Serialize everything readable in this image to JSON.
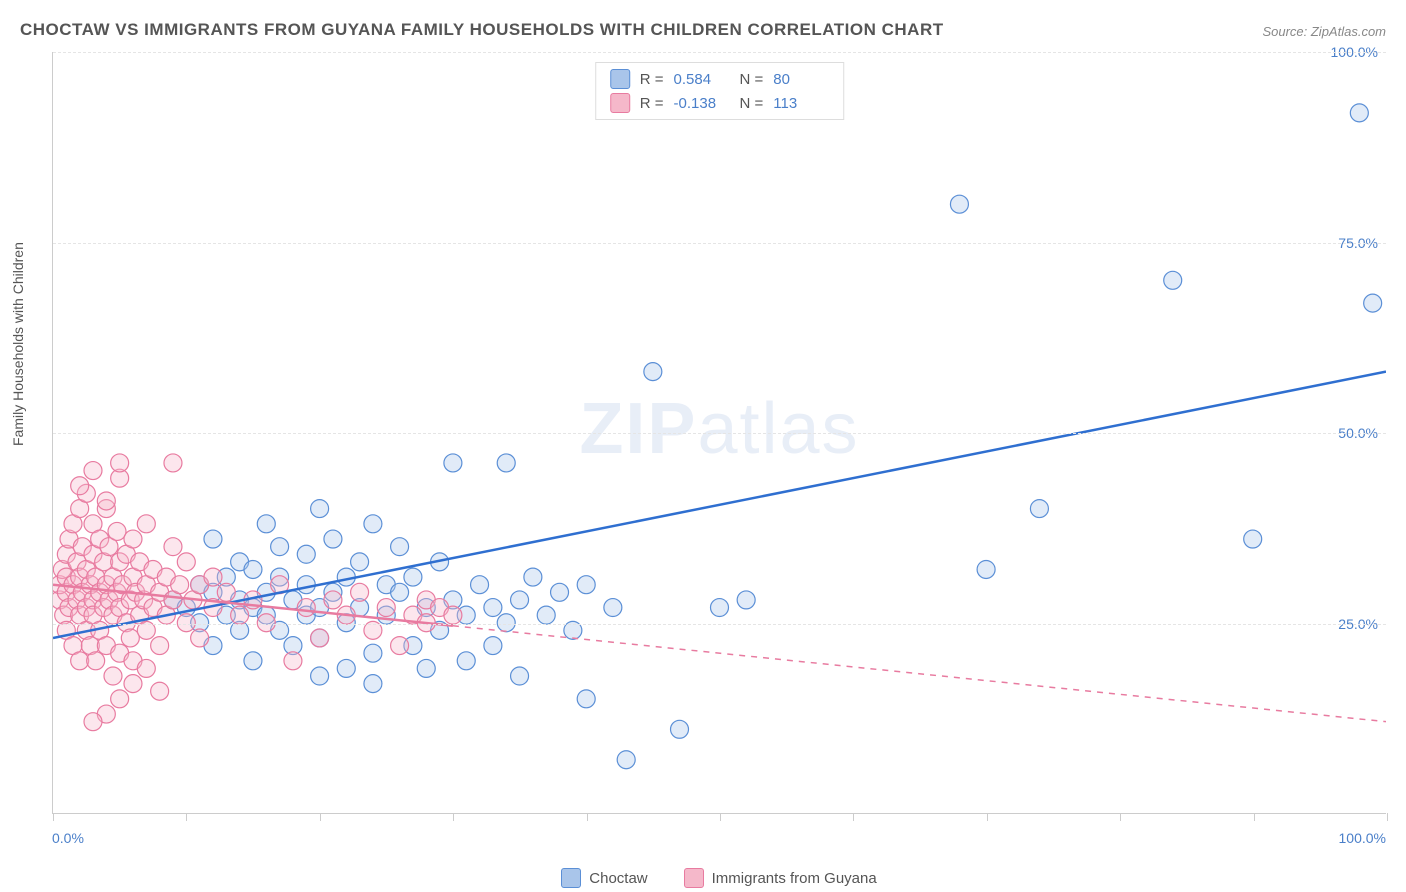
{
  "title": "CHOCTAW VS IMMIGRANTS FROM GUYANA FAMILY HOUSEHOLDS WITH CHILDREN CORRELATION CHART",
  "source": "Source: ZipAtlas.com",
  "y_axis_label": "Family Households with Children",
  "watermark": {
    "bold": "ZIP",
    "light": "atlas"
  },
  "chart": {
    "type": "scatter",
    "xlim": [
      0,
      100
    ],
    "ylim": [
      0,
      100
    ],
    "x_ticks": [
      0,
      10,
      20,
      30,
      40,
      50,
      60,
      70,
      80,
      90,
      100
    ],
    "y_gridlines": [
      25,
      50,
      75,
      100
    ],
    "x_tick_labels": {
      "0": "0.0%",
      "100": "100.0%"
    },
    "y_tick_labels": {
      "25": "25.0%",
      "50": "50.0%",
      "75": "75.0%",
      "100": "100.0%"
    },
    "background_color": "#ffffff",
    "grid_color": "#e5e5e5",
    "axis_color": "#cccccc",
    "tick_label_color": "#4a7fc9",
    "title_color": "#555555",
    "marker_radius": 9,
    "marker_stroke_width": 1.2,
    "marker_fill_opacity": 0.35,
    "trend_line_width": 2.5,
    "series": [
      {
        "name": "Choctaw",
        "color_fill": "#a9c5ea",
        "color_stroke": "#5b8fd6",
        "R": "0.584",
        "N": "80",
        "trend": {
          "x1": 0,
          "y1": 23,
          "x2": 100,
          "y2": 58,
          "solid": true,
          "color": "#2f6fd0"
        },
        "points": [
          [
            9,
            28
          ],
          [
            10,
            27
          ],
          [
            11,
            30
          ],
          [
            11,
            25
          ],
          [
            12,
            29
          ],
          [
            12,
            22
          ],
          [
            13,
            31
          ],
          [
            13,
            26
          ],
          [
            14,
            28
          ],
          [
            14,
            33
          ],
          [
            14,
            24
          ],
          [
            15,
            27
          ],
          [
            15,
            32
          ],
          [
            15,
            20
          ],
          [
            16,
            29
          ],
          [
            16,
            26
          ],
          [
            17,
            31
          ],
          [
            17,
            24
          ],
          [
            17,
            35
          ],
          [
            18,
            28
          ],
          [
            18,
            22
          ],
          [
            19,
            30
          ],
          [
            19,
            26
          ],
          [
            19,
            34
          ],
          [
            20,
            40
          ],
          [
            20,
            27
          ],
          [
            20,
            23
          ],
          [
            21,
            29
          ],
          [
            21,
            36
          ],
          [
            22,
            31
          ],
          [
            22,
            25
          ],
          [
            22,
            19
          ],
          [
            23,
            33
          ],
          [
            23,
            27
          ],
          [
            24,
            38
          ],
          [
            24,
            21
          ],
          [
            25,
            30
          ],
          [
            25,
            26
          ],
          [
            26,
            29
          ],
          [
            26,
            35
          ],
          [
            27,
            22
          ],
          [
            27,
            31
          ],
          [
            28,
            27
          ],
          [
            28,
            19
          ],
          [
            29,
            33
          ],
          [
            29,
            24
          ],
          [
            30,
            28
          ],
          [
            30,
            46
          ],
          [
            31,
            26
          ],
          [
            31,
            20
          ],
          [
            32,
            30
          ],
          [
            33,
            27
          ],
          [
            33,
            22
          ],
          [
            34,
            25
          ],
          [
            35,
            28
          ],
          [
            35,
            18
          ],
          [
            36,
            31
          ],
          [
            37,
            26
          ],
          [
            38,
            29
          ],
          [
            39,
            24
          ],
          [
            40,
            30
          ],
          [
            40,
            15
          ],
          [
            42,
            27
          ],
          [
            43,
            7
          ],
          [
            45,
            58
          ],
          [
            47,
            11
          ],
          [
            50,
            27
          ],
          [
            52,
            28
          ],
          [
            68,
            80
          ],
          [
            70,
            32
          ],
          [
            74,
            40
          ],
          [
            84,
            70
          ],
          [
            90,
            36
          ],
          [
            98,
            92
          ],
          [
            99,
            67
          ],
          [
            12,
            36
          ],
          [
            16,
            38
          ],
          [
            20,
            18
          ],
          [
            24,
            17
          ],
          [
            34,
            46
          ]
        ]
      },
      {
        "name": "Immigrants from Guyana",
        "color_fill": "#f5b8ca",
        "color_stroke": "#e87ba0",
        "R": "-0.138",
        "N": "113",
        "trend": {
          "x1": 0,
          "y1": 30,
          "x2": 100,
          "y2": 12,
          "solid": false,
          "solid_until": 30,
          "color": "#e87ba0"
        },
        "points": [
          [
            0.5,
            28
          ],
          [
            0.5,
            30
          ],
          [
            0.7,
            32
          ],
          [
            0.8,
            26
          ],
          [
            1,
            29
          ],
          [
            1,
            34
          ],
          [
            1,
            24
          ],
          [
            1,
            31
          ],
          [
            1.2,
            27
          ],
          [
            1.2,
            36
          ],
          [
            1.5,
            30
          ],
          [
            1.5,
            22
          ],
          [
            1.5,
            38
          ],
          [
            1.8,
            28
          ],
          [
            1.8,
            33
          ],
          [
            2,
            26
          ],
          [
            2,
            31
          ],
          [
            2,
            40
          ],
          [
            2,
            20
          ],
          [
            2.2,
            29
          ],
          [
            2.2,
            35
          ],
          [
            2.5,
            27
          ],
          [
            2.5,
            32
          ],
          [
            2.5,
            24
          ],
          [
            2.5,
            42
          ],
          [
            2.8,
            30
          ],
          [
            2.8,
            22
          ],
          [
            3,
            28
          ],
          [
            3,
            34
          ],
          [
            3,
            26
          ],
          [
            3,
            38
          ],
          [
            3.2,
            31
          ],
          [
            3.2,
            20
          ],
          [
            3.5,
            29
          ],
          [
            3.5,
            36
          ],
          [
            3.5,
            24
          ],
          [
            3.8,
            27
          ],
          [
            3.8,
            33
          ],
          [
            4,
            30
          ],
          [
            4,
            22
          ],
          [
            4,
            40
          ],
          [
            4.2,
            28
          ],
          [
            4.2,
            35
          ],
          [
            4.5,
            26
          ],
          [
            4.5,
            31
          ],
          [
            4.5,
            18
          ],
          [
            4.8,
            29
          ],
          [
            4.8,
            37
          ],
          [
            5,
            27
          ],
          [
            5,
            33
          ],
          [
            5,
            21
          ],
          [
            5,
            44
          ],
          [
            5.2,
            30
          ],
          [
            5.5,
            25
          ],
          [
            5.5,
            34
          ],
          [
            5.8,
            28
          ],
          [
            5.8,
            23
          ],
          [
            6,
            31
          ],
          [
            6,
            36
          ],
          [
            6,
            20
          ],
          [
            6.2,
            29
          ],
          [
            6.5,
            26
          ],
          [
            6.5,
            33
          ],
          [
            6.8,
            28
          ],
          [
            7,
            30
          ],
          [
            7,
            24
          ],
          [
            7,
            38
          ],
          [
            7.5,
            27
          ],
          [
            7.5,
            32
          ],
          [
            8,
            29
          ],
          [
            8,
            22
          ],
          [
            8.5,
            31
          ],
          [
            8.5,
            26
          ],
          [
            9,
            28
          ],
          [
            9,
            35
          ],
          [
            9,
            46
          ],
          [
            9.5,
            30
          ],
          [
            10,
            25
          ],
          [
            10,
            33
          ],
          [
            10.5,
            28
          ],
          [
            11,
            23
          ],
          [
            11,
            30
          ],
          [
            12,
            27
          ],
          [
            12,
            31
          ],
          [
            13,
            29
          ],
          [
            14,
            26
          ],
          [
            15,
            28
          ],
          [
            16,
            25
          ],
          [
            17,
            30
          ],
          [
            18,
            20
          ],
          [
            19,
            27
          ],
          [
            20,
            23
          ],
          [
            21,
            28
          ],
          [
            22,
            26
          ],
          [
            23,
            29
          ],
          [
            24,
            24
          ],
          [
            25,
            27
          ],
          [
            26,
            22
          ],
          [
            27,
            26
          ],
          [
            28,
            28
          ],
          [
            28,
            25
          ],
          [
            29,
            27
          ],
          [
            30,
            26
          ],
          [
            4,
            13
          ],
          [
            5,
            15
          ],
          [
            6,
            17
          ],
          [
            7,
            19
          ],
          [
            3,
            45
          ],
          [
            2,
            43
          ],
          [
            4,
            41
          ],
          [
            3,
            12
          ],
          [
            5,
            46
          ],
          [
            8,
            16
          ]
        ]
      }
    ]
  },
  "legend": {
    "series1_label": "Choctaw",
    "series2_label": "Immigrants from Guyana"
  }
}
